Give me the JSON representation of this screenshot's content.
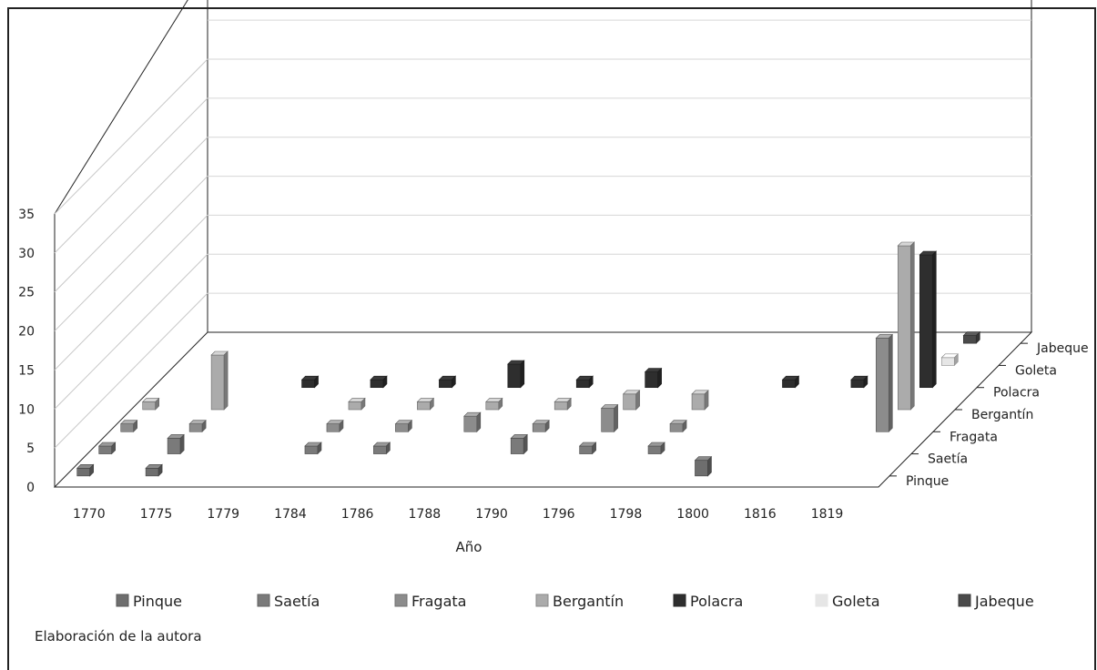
{
  "chart_data": {
    "type": "bar",
    "subtype": "3d-grouped-by-depth",
    "xlabel": "Año",
    "categories": [
      "1770",
      "1775",
      "1779",
      "1784",
      "1786",
      "1788",
      "1790",
      "1796",
      "1798",
      "1800",
      "1816",
      "1819"
    ],
    "ylim": [
      0,
      35
    ],
    "yticks": [
      "0",
      "5",
      "10",
      "15",
      "20",
      "25",
      "30",
      "35"
    ],
    "grid": true,
    "legend_position": "bottom",
    "series": [
      {
        "name": "Pinque",
        "color": "#6e6e6e",
        "values": [
          1,
          1,
          0,
          0,
          0,
          0,
          0,
          0,
          0,
          2,
          0,
          0
        ]
      },
      {
        "name": "Saetía",
        "color": "#7a7a7a",
        "values": [
          1,
          2,
          0,
          1,
          1,
          0,
          2,
          1,
          1,
          0,
          0,
          0
        ]
      },
      {
        "name": "Fragata",
        "color": "#8c8c8c",
        "values": [
          1,
          1,
          0,
          1,
          1,
          2,
          1,
          3,
          1,
          0,
          0,
          12
        ]
      },
      {
        "name": "Bergantín",
        "color": "#ababab",
        "values": [
          1,
          7,
          0,
          1,
          1,
          1,
          1,
          2,
          2,
          0,
          0,
          21
        ]
      },
      {
        "name": "Polacra",
        "color": "#2e2e2e",
        "values": [
          0,
          0,
          1,
          1,
          1,
          3,
          1,
          2,
          0,
          1,
          1,
          17
        ]
      },
      {
        "name": "Goleta",
        "color": "#e6e6e6",
        "values": [
          0,
          0,
          0,
          0,
          0,
          0,
          0,
          0,
          0,
          0,
          0,
          1
        ]
      },
      {
        "name": "Jabeque",
        "color": "#4a4a4a",
        "values": [
          0,
          0,
          0,
          0,
          0,
          0,
          0,
          0,
          0,
          0,
          0,
          1
        ]
      }
    ]
  },
  "note": "Elaboración de la autora"
}
